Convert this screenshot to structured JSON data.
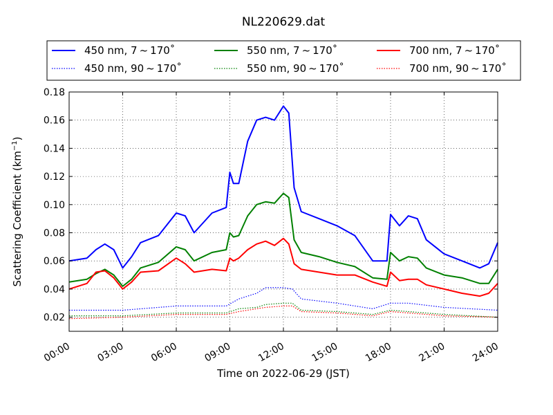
{
  "chart_data": {
    "type": "line",
    "title": "NL220629.dat",
    "xlabel": "Time on 2022-06-29 (JST)",
    "ylabel_main": "Scattering Coefficient (km",
    "ylabel_sup": "−1",
    "ylabel_end": ")",
    "xlim": [
      0,
      24
    ],
    "ylim": [
      0.01,
      0.18
    ],
    "x_ticks": [
      0,
      3,
      6,
      9,
      12,
      15,
      18,
      21,
      24
    ],
    "x_tick_labels": [
      "00:00",
      "03:00",
      "06:00",
      "09:00",
      "12:00",
      "15:00",
      "18:00",
      "21:00",
      "24:00"
    ],
    "y_ticks": [
      0.02,
      0.04,
      0.06,
      0.08,
      0.1,
      0.12,
      0.14,
      0.16,
      0.18
    ],
    "y_tick_labels": [
      "0.02",
      "0.04",
      "0.06",
      "0.08",
      "0.10",
      "0.12",
      "0.14",
      "0.16",
      "0.18"
    ],
    "grid": true,
    "legend_placement": "top",
    "series": [
      {
        "name": "450 nm, 7 ~ 170˚",
        "color": "#0000ff",
        "style": "solid",
        "x": [
          0,
          1,
          1.5,
          2,
          2.5,
          3,
          3.5,
          4,
          5,
          6,
          6.5,
          7,
          8,
          8.8,
          9,
          9.2,
          9.5,
          10,
          10.5,
          11,
          11.5,
          12,
          12.3,
          12.6,
          13,
          14,
          15,
          16,
          17,
          17.8,
          18,
          18.5,
          19,
          19.5,
          20,
          21,
          22,
          23,
          23.5,
          24
        ],
        "y": [
          0.06,
          0.062,
          0.068,
          0.072,
          0.068,
          0.055,
          0.063,
          0.073,
          0.078,
          0.094,
          0.092,
          0.08,
          0.094,
          0.098,
          0.123,
          0.115,
          0.115,
          0.145,
          0.16,
          0.162,
          0.16,
          0.17,
          0.165,
          0.112,
          0.095,
          0.09,
          0.085,
          0.078,
          0.06,
          0.06,
          0.093,
          0.085,
          0.092,
          0.09,
          0.075,
          0.065,
          0.06,
          0.055,
          0.058,
          0.073
        ]
      },
      {
        "name": "550 nm, 7 ~ 170˚",
        "color": "#008000",
        "style": "solid",
        "x": [
          0,
          1,
          1.5,
          2,
          2.5,
          3,
          3.5,
          4,
          5,
          6,
          6.5,
          7,
          8,
          8.8,
          9,
          9.2,
          9.5,
          10,
          10.5,
          11,
          11.5,
          12,
          12.3,
          12.6,
          13,
          14,
          15,
          16,
          17,
          17.8,
          18,
          18.5,
          19,
          19.5,
          20,
          21,
          22,
          23,
          23.5,
          24
        ],
        "y": [
          0.045,
          0.047,
          0.051,
          0.054,
          0.05,
          0.042,
          0.047,
          0.055,
          0.059,
          0.07,
          0.068,
          0.06,
          0.066,
          0.068,
          0.08,
          0.077,
          0.078,
          0.092,
          0.1,
          0.102,
          0.101,
          0.108,
          0.105,
          0.075,
          0.066,
          0.063,
          0.059,
          0.056,
          0.048,
          0.047,
          0.066,
          0.06,
          0.063,
          0.062,
          0.055,
          0.05,
          0.048,
          0.044,
          0.044,
          0.054
        ]
      },
      {
        "name": "700 nm, 7 ~ 170˚",
        "color": "#ff0000",
        "style": "solid",
        "x": [
          0,
          1,
          1.5,
          2,
          2.5,
          3,
          3.5,
          4,
          5,
          6,
          6.5,
          7,
          8,
          8.8,
          9,
          9.2,
          9.5,
          10,
          10.5,
          11,
          11.5,
          12,
          12.3,
          12.6,
          13,
          14,
          15,
          16,
          17,
          17.8,
          18,
          18.5,
          19,
          19.5,
          20,
          21,
          22,
          23,
          23.5,
          24
        ],
        "y": [
          0.04,
          0.044,
          0.052,
          0.053,
          0.048,
          0.04,
          0.045,
          0.052,
          0.053,
          0.062,
          0.058,
          0.052,
          0.054,
          0.053,
          0.062,
          0.06,
          0.062,
          0.068,
          0.072,
          0.074,
          0.071,
          0.076,
          0.072,
          0.058,
          0.054,
          0.052,
          0.05,
          0.05,
          0.045,
          0.042,
          0.052,
          0.046,
          0.047,
          0.047,
          0.043,
          0.04,
          0.037,
          0.035,
          0.037,
          0.044
        ]
      },
      {
        "name": "450 nm, 90 ~ 170˚",
        "color": "#0000ff",
        "style": "dotted",
        "x": [
          0,
          3,
          6,
          8.8,
          9.5,
          10.5,
          11,
          12,
          12.5,
          13,
          15,
          17,
          18,
          19,
          21,
          24
        ],
        "y": [
          0.025,
          0.025,
          0.028,
          0.028,
          0.033,
          0.037,
          0.041,
          0.041,
          0.04,
          0.033,
          0.03,
          0.026,
          0.03,
          0.03,
          0.027,
          0.025
        ]
      },
      {
        "name": "550 nm, 90 ~ 170˚",
        "color": "#008000",
        "style": "dotted",
        "x": [
          0,
          3,
          6,
          8.8,
          9.5,
          10.5,
          11,
          12,
          12.5,
          13,
          15,
          17,
          18,
          19,
          21,
          24
        ],
        "y": [
          0.021,
          0.021,
          0.023,
          0.023,
          0.026,
          0.027,
          0.029,
          0.03,
          0.03,
          0.025,
          0.024,
          0.022,
          0.025,
          0.024,
          0.022,
          0.02
        ]
      },
      {
        "name": "700 nm, 90 ~ 170˚",
        "color": "#ff0000",
        "style": "dotted",
        "x": [
          0,
          3,
          6,
          8.8,
          9.5,
          10.5,
          11,
          12,
          12.5,
          13,
          15,
          17,
          18,
          19,
          21,
          24
        ],
        "y": [
          0.019,
          0.02,
          0.022,
          0.022,
          0.024,
          0.026,
          0.027,
          0.028,
          0.028,
          0.024,
          0.023,
          0.021,
          0.024,
          0.023,
          0.021,
          0.02
        ]
      }
    ],
    "legend_order": [
      0,
      1,
      2,
      3,
      4,
      5
    ]
  }
}
